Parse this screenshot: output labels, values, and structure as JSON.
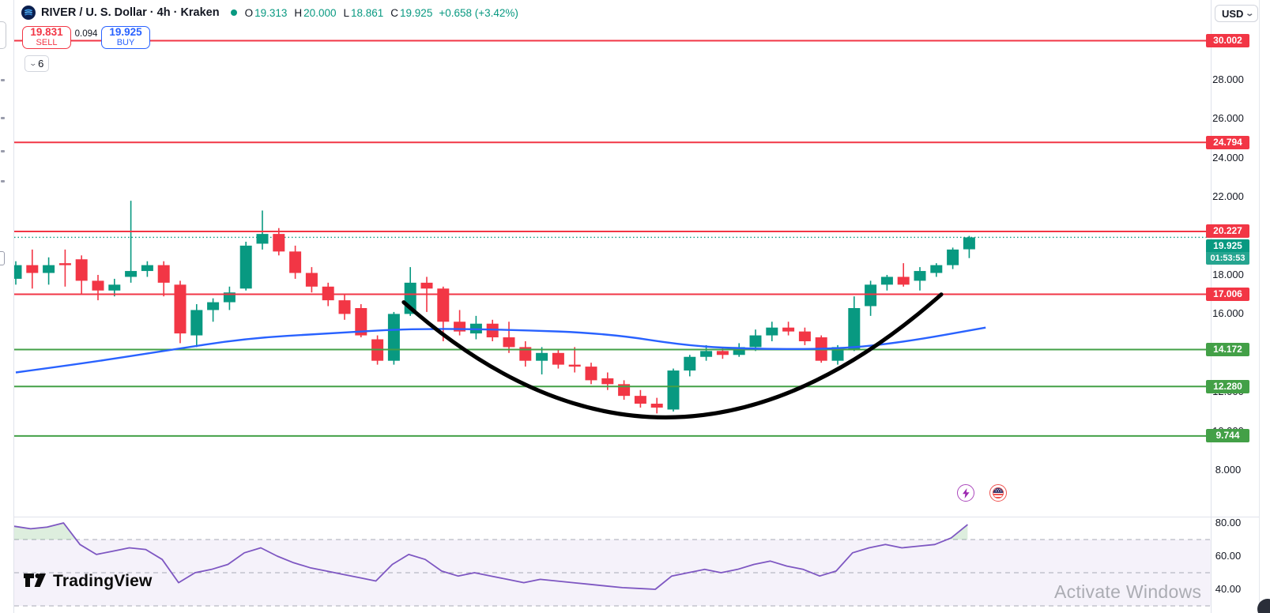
{
  "header": {
    "title": "RIVER / U. S. Dollar · 4h · Kraken",
    "ohlc": {
      "o_label": "O",
      "o_value": "19.313",
      "h_label": "H",
      "h_value": "20.000",
      "l_label": "L",
      "l_value": "18.861",
      "c_label": "C",
      "c_value": "19.925",
      "change": "+0.658 (+3.42%)"
    },
    "currency": "USD"
  },
  "trade_panel": {
    "sell_price": "19.831",
    "sell_label": "SELL",
    "spread": "0.094",
    "buy_price": "19.925",
    "buy_label": "BUY"
  },
  "toolbar": {
    "collapsed_count": "6"
  },
  "watermark": {
    "logo_text": "TradingView"
  },
  "os_watermark": "Activate Windows",
  "colors": {
    "up": "#089981",
    "down": "#f23645",
    "resistance": "#f23645",
    "support": "#43a047",
    "ma": "#2962ff",
    "rsi": "#7e57c2",
    "cup": "#000000",
    "current_price": "#089981",
    "buy": "#2962ff",
    "sell": "#f23645"
  },
  "chart_data": {
    "type": "candlestick",
    "symbol": "RIVER / U. S. Dollar",
    "exchange": "Kraken",
    "interval": "4h",
    "price_axis": {
      "visible_range": [
        7.2,
        31.0
      ],
      "ticks": [
        {
          "label": "28.000",
          "value": 28
        },
        {
          "label": "26.000",
          "value": 26
        },
        {
          "label": "24.000",
          "value": 24
        },
        {
          "label": "22.000",
          "value": 22
        },
        {
          "label": "18.000",
          "value": 18
        },
        {
          "label": "16.000",
          "value": 16
        },
        {
          "label": "12.000",
          "value": 12
        },
        {
          "label": "10.000",
          "value": 10
        },
        {
          "label": "8.000",
          "value": 8
        }
      ]
    },
    "levels": [
      {
        "label": "30.002",
        "value": 30.002,
        "type": "resistance",
        "color": "#f23645"
      },
      {
        "label": "24.794",
        "value": 24.794,
        "type": "resistance",
        "color": "#f23645"
      },
      {
        "label": "20.227",
        "value": 20.227,
        "type": "resistance",
        "color": "#f23645"
      },
      {
        "label": "17.006",
        "value": 17.006,
        "type": "resistance",
        "color": "#f23645"
      },
      {
        "label": "14.172",
        "value": 14.172,
        "type": "support",
        "color": "#43a047"
      },
      {
        "label": "12.280",
        "value": 12.28,
        "type": "support",
        "color": "#43a047"
      },
      {
        "label": "9.744",
        "value": 9.744,
        "type": "support",
        "color": "#43a047"
      }
    ],
    "current_price": {
      "value": 19.925,
      "label": "19.925",
      "countdown": "01:53:53"
    },
    "candles": [
      [
        17.8,
        18.7,
        17.5,
        18.5
      ],
      [
        18.5,
        19.3,
        17.3,
        18.1
      ],
      [
        18.1,
        18.9,
        17.5,
        18.5
      ],
      [
        18.6,
        19.3,
        17.4,
        18.5
      ],
      [
        18.8,
        19.0,
        17.0,
        17.7
      ],
      [
        17.7,
        18.0,
        16.7,
        17.2
      ],
      [
        17.2,
        17.8,
        16.9,
        17.5
      ],
      [
        17.9,
        21.8,
        17.6,
        18.2
      ],
      [
        18.2,
        18.7,
        17.9,
        18.5
      ],
      [
        18.5,
        18.7,
        16.9,
        17.6
      ],
      [
        17.5,
        17.7,
        14.5,
        15.0
      ],
      [
        14.9,
        16.5,
        14.3,
        16.2
      ],
      [
        16.2,
        16.8,
        15.6,
        16.6
      ],
      [
        16.6,
        17.4,
        16.2,
        17.1
      ],
      [
        17.3,
        19.7,
        17.2,
        19.5
      ],
      [
        19.6,
        21.3,
        19.3,
        20.1
      ],
      [
        20.1,
        20.4,
        19.0,
        19.2
      ],
      [
        19.2,
        19.5,
        17.8,
        18.1
      ],
      [
        18.1,
        18.4,
        17.1,
        17.4
      ],
      [
        17.4,
        17.6,
        16.4,
        16.7
      ],
      [
        16.7,
        17.0,
        15.7,
        16.0
      ],
      [
        16.3,
        16.5,
        14.8,
        14.9
      ],
      [
        14.7,
        14.9,
        13.4,
        13.6
      ],
      [
        13.6,
        16.1,
        13.4,
        16.0
      ],
      [
        16.0,
        18.4,
        15.9,
        17.6
      ],
      [
        17.6,
        17.9,
        16.1,
        17.3
      ],
      [
        17.3,
        17.4,
        14.6,
        15.6
      ],
      [
        15.6,
        16.2,
        14.9,
        15.1
      ],
      [
        15.0,
        15.9,
        14.7,
        15.5
      ],
      [
        15.5,
        15.7,
        14.6,
        14.8
      ],
      [
        14.8,
        15.6,
        14.0,
        14.3
      ],
      [
        14.3,
        14.6,
        13.3,
        13.6
      ],
      [
        13.6,
        14.3,
        12.9,
        14.0
      ],
      [
        14.0,
        14.2,
        13.2,
        13.4
      ],
      [
        13.4,
        14.3,
        13.0,
        13.3
      ],
      [
        13.3,
        13.5,
        12.4,
        12.6
      ],
      [
        12.7,
        13.0,
        12.1,
        12.4
      ],
      [
        12.4,
        12.6,
        11.6,
        11.8
      ],
      [
        11.8,
        12.1,
        11.2,
        11.4
      ],
      [
        11.4,
        11.7,
        10.9,
        11.2
      ],
      [
        11.1,
        13.2,
        11.0,
        13.1
      ],
      [
        13.1,
        13.9,
        12.8,
        13.8
      ],
      [
        13.8,
        14.4,
        13.6,
        14.1
      ],
      [
        14.1,
        14.3,
        13.7,
        13.9
      ],
      [
        13.9,
        14.5,
        13.8,
        14.3
      ],
      [
        14.3,
        15.2,
        14.1,
        14.9
      ],
      [
        14.9,
        15.6,
        14.6,
        15.3
      ],
      [
        15.3,
        15.6,
        14.9,
        15.1
      ],
      [
        15.1,
        15.3,
        14.4,
        14.6
      ],
      [
        14.8,
        14.9,
        13.5,
        13.6
      ],
      [
        13.6,
        14.4,
        13.4,
        14.3
      ],
      [
        14.2,
        16.9,
        14.1,
        16.3
      ],
      [
        16.4,
        17.7,
        15.9,
        17.5
      ],
      [
        17.5,
        18.0,
        17.2,
        17.9
      ],
      [
        17.9,
        18.6,
        17.4,
        17.5
      ],
      [
        17.7,
        18.4,
        17.2,
        18.2
      ],
      [
        18.1,
        18.6,
        17.9,
        18.5
      ],
      [
        18.5,
        19.4,
        18.3,
        19.3
      ],
      [
        19.313,
        20.0,
        18.861,
        19.925
      ]
    ],
    "ma_line": {
      "name": "MA",
      "color": "#2962ff",
      "points": [
        [
          0,
          13.0
        ],
        [
          4,
          13.45
        ],
        [
          9,
          14.1
        ],
        [
          14,
          14.75
        ],
        [
          19,
          15.0
        ],
        [
          24,
          15.25
        ],
        [
          30,
          15.2
        ],
        [
          36,
          15.0
        ],
        [
          41,
          14.35
        ],
        [
          45,
          14.2
        ],
        [
          50,
          14.2
        ],
        [
          54,
          14.55
        ],
        [
          59,
          15.3
        ]
      ]
    },
    "cup_pattern": {
      "name": "cup-and-handle arc",
      "color": "#000000",
      "points": [
        [
          23.6,
          16.6
        ],
        [
          39.8,
          10.7
        ],
        [
          56.3,
          17.0
        ]
      ]
    },
    "rsi_pane": {
      "name": "RSI",
      "color": "#7e57c2",
      "band_fill": "rgba(126,87,194,0.08)",
      "bands": [
        70,
        50,
        30
      ],
      "ticks": [
        {
          "label": "80.00",
          "value": 80
        },
        {
          "label": "60.00",
          "value": 60
        },
        {
          "label": "40.00",
          "value": 40
        }
      ],
      "values": [
        78,
        76.5,
        77.5,
        80,
        67,
        61,
        63,
        65,
        64,
        58,
        44,
        50,
        52,
        55,
        62,
        65,
        60,
        56,
        53,
        51,
        49,
        47,
        45,
        55,
        61,
        58,
        51,
        48,
        50,
        48,
        46,
        44,
        46,
        45,
        44,
        43,
        42,
        41,
        40.5,
        40,
        48,
        50,
        52,
        50,
        52,
        55,
        57,
        54,
        52,
        48,
        51,
        62,
        65,
        67,
        65,
        66,
        67,
        71,
        79
      ]
    },
    "events": [
      {
        "icon": "lightning",
        "color": "#9c27b0"
      },
      {
        "icon": "us-flag",
        "color": "#ef5350"
      }
    ]
  }
}
